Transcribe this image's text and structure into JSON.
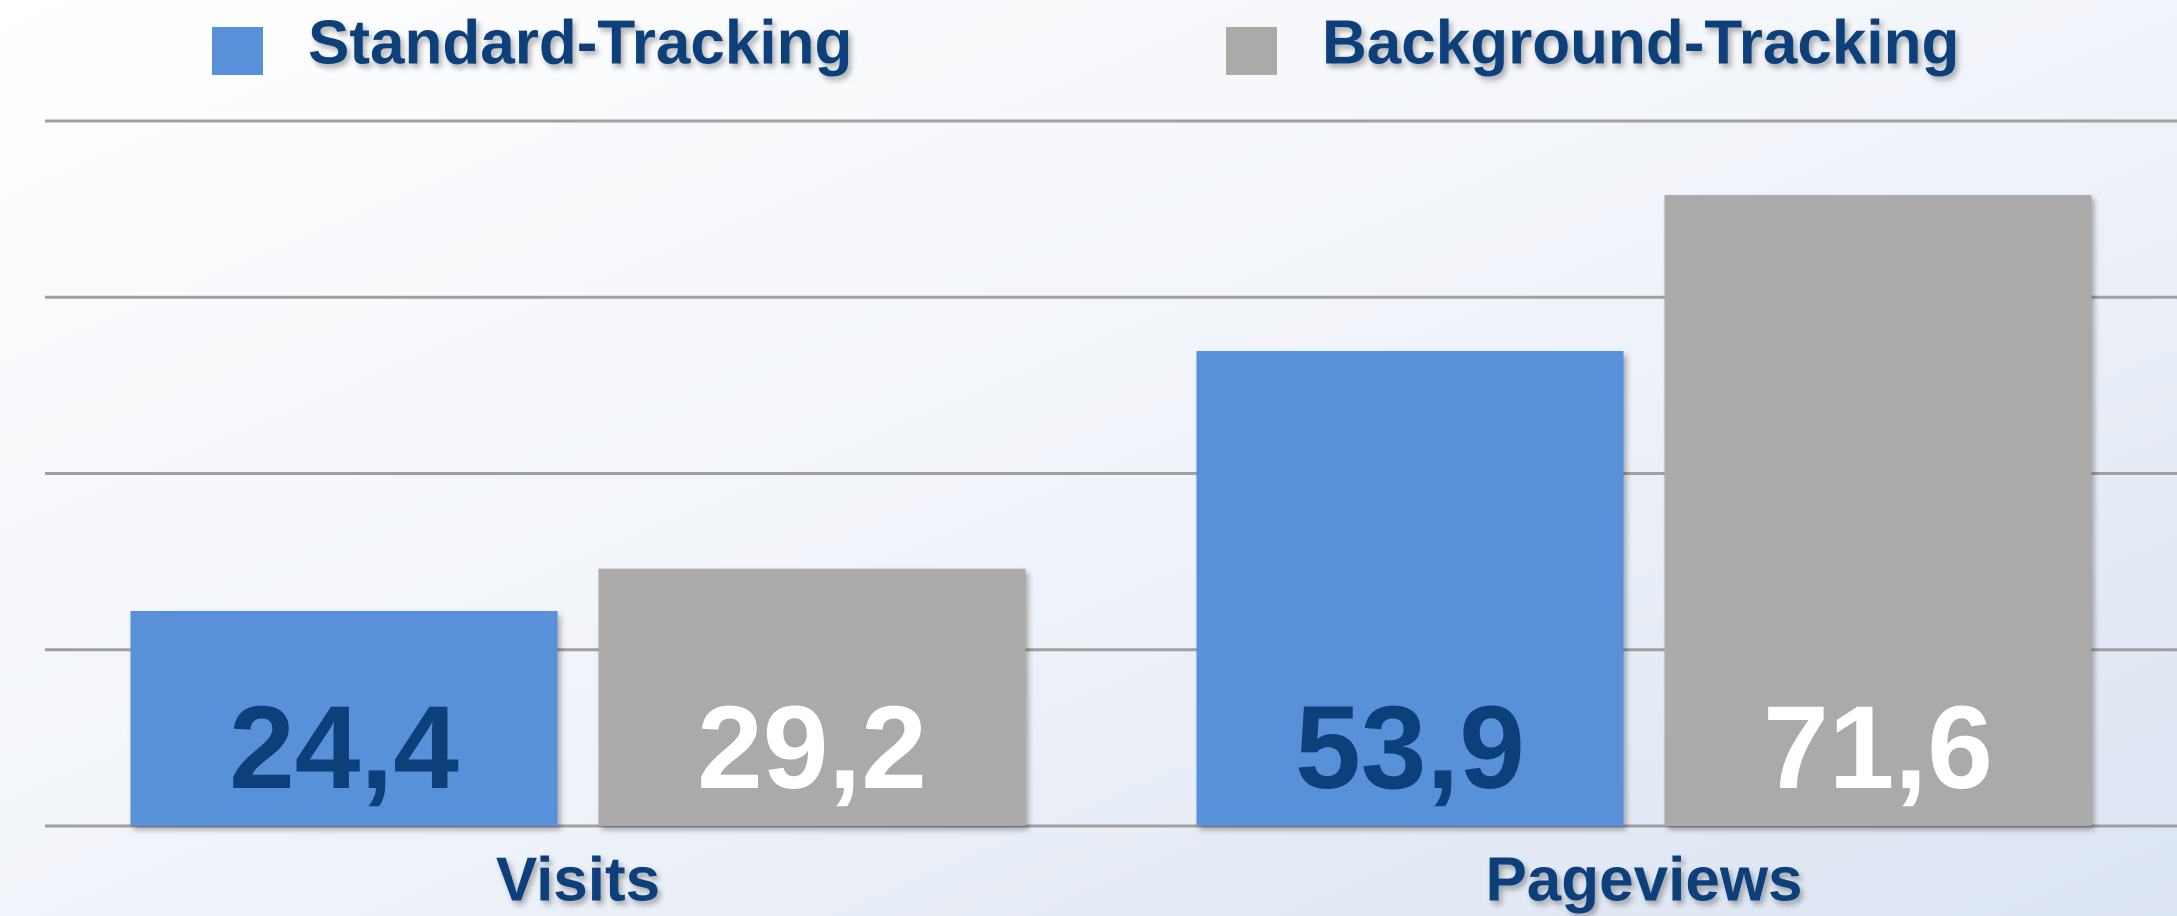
{
  "chart_data": {
    "type": "bar",
    "categories": [
      "Visits",
      "Pageviews"
    ],
    "series": [
      {
        "name": "Standard-Tracking",
        "color": "#5891da",
        "label_color": "#0d3f7a",
        "values": [
          24.4,
          53.9
        ],
        "value_labels": [
          "24,4",
          "53,9"
        ]
      },
      {
        "name": "Background-Tracking",
        "color": "#aaaaaa",
        "label_color": "#ffffff",
        "values": [
          29.2,
          71.6
        ],
        "value_labels": [
          "29,2",
          "71,6"
        ]
      }
    ],
    "ylim": [
      0,
      80
    ],
    "yticks": [
      0,
      20,
      40,
      60,
      80
    ],
    "grid": true,
    "legend": "top"
  }
}
